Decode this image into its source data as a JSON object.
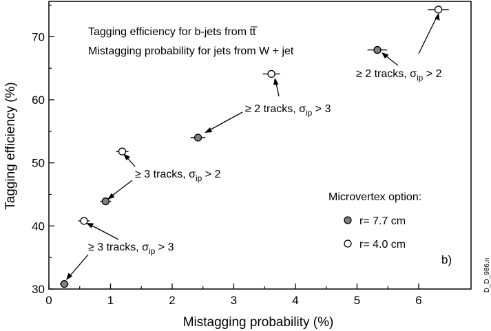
{
  "chart_data": {
    "type": "scatter",
    "xlabel": "Mistagging probability (%)",
    "ylabel": "Tagging efficiency (%)",
    "xlim": [
      0,
      6.85
    ],
    "ylim": [
      30,
      75.6
    ],
    "x_ticks": [
      0,
      1,
      2,
      3,
      4,
      5,
      6
    ],
    "y_ticks": [
      30,
      40,
      50,
      60,
      70
    ],
    "title_lines": [
      "Tagging efficiency for b-jets from tt̅",
      "Mistagging probability for jets from W + jet"
    ],
    "legend_title": "Microvertex option:",
    "panel_label": "b)",
    "side_label": "D_D_986.n",
    "grid": false,
    "legend_position": "lower right",
    "colors": {
      "filled_marker": "#808080",
      "open_marker": "#ffffff",
      "ink": "#000000"
    },
    "series": [
      {
        "name": "r= 7.7 cm",
        "marker": "filled",
        "points": [
          {
            "x": 0.25,
            "y": 30.8,
            "xerr": 0.07
          },
          {
            "x": 0.92,
            "y": 43.9,
            "xerr": 0.09
          },
          {
            "x": 2.42,
            "y": 54.0,
            "xerr": 0.12
          },
          {
            "x": 5.33,
            "y": 67.9,
            "xerr": 0.16
          }
        ]
      },
      {
        "name": "r= 4.0 cm",
        "marker": "open",
        "points": [
          {
            "x": 0.57,
            "y": 40.8,
            "xerr": 0.09
          },
          {
            "x": 1.19,
            "y": 51.8,
            "xerr": 0.1
          },
          {
            "x": 3.61,
            "y": 64.1,
            "xerr": 0.14
          },
          {
            "x": 6.32,
            "y": 74.3,
            "xerr": 0.17
          }
        ]
      }
    ],
    "annotations": [
      {
        "pre": "≥ 2 tracks, σ",
        "sub": "ip",
        "post": " > 2"
      },
      {
        "pre": "≥ 2 tracks, σ",
        "sub": "ip",
        "post": " > 3"
      },
      {
        "pre": "≥ 3 tracks, σ",
        "sub": "ip",
        "post": " > 2"
      },
      {
        "pre": "≥ 3 tracks, σ",
        "sub": "ip",
        "post": " > 3"
      }
    ]
  }
}
